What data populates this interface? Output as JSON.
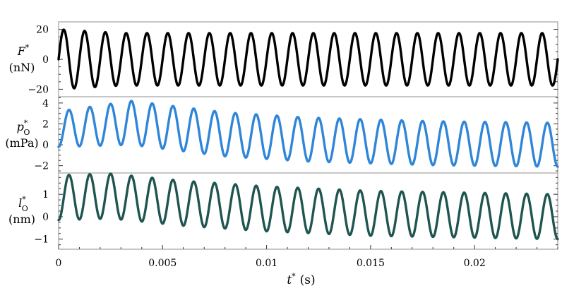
{
  "chart_data": [
    {
      "type": "line",
      "panel": "top",
      "ylabel_symbol": "F",
      "ylabel_sup": "*",
      "ylabel_unit": "(nN)",
      "xlim": [
        0,
        0.024
      ],
      "ylim": [
        -25,
        25
      ],
      "yticks": [
        20,
        0,
        -20
      ],
      "ytick_labels": [
        "20",
        "0",
        "−20"
      ],
      "color": "#000000",
      "signal": {
        "frequency_hz": 1000,
        "amplitude_points": [
          [
            0,
            20
          ],
          [
            0.003,
            17.5
          ],
          [
            0.024,
            17.5
          ]
        ],
        "offset": 0,
        "phase": 0
      }
    },
    {
      "type": "line",
      "panel": "middle",
      "ylabel_symbol": "p",
      "ylabel_sub": "O",
      "ylabel_sup": "*",
      "ylabel_unit": "(mPa)",
      "xlim": [
        0,
        0.024
      ],
      "ylim": [
        -2.7,
        4.6
      ],
      "yticks": [
        4,
        2,
        0,
        -2
      ],
      "ytick_labels": [
        "4",
        "2",
        "0",
        "−2"
      ],
      "color": "#2f86d8",
      "signal": {
        "frequency_hz": 1000,
        "amplitude_points": [
          [
            0,
            1.7
          ],
          [
            0.0035,
            2.1
          ],
          [
            0.024,
            2.1
          ]
        ],
        "offset_points": [
          [
            0,
            1.5
          ],
          [
            0.0035,
            2.1
          ],
          [
            0.008,
            1.0
          ],
          [
            0.012,
            0.5
          ],
          [
            0.018,
            0.15
          ],
          [
            0.024,
            0.0
          ]
        ],
        "phase": -1.5708
      }
    },
    {
      "type": "line",
      "panel": "bottom",
      "ylabel_symbol": "l",
      "ylabel_sub": "O",
      "ylabel_sup": "*",
      "ylabel_unit": "(nm)",
      "xlim": [
        0,
        0.024
      ],
      "ylim": [
        -1.45,
        1.95
      ],
      "yticks": [
        1,
        0,
        -1
      ],
      "ytick_labels": [
        "1",
        "0",
        "−1"
      ],
      "color": "#1f5550",
      "signal": {
        "frequency_hz": 1000,
        "amplitude_points": [
          [
            0,
            1.0
          ],
          [
            0.024,
            1.0
          ]
        ],
        "offset_points": [
          [
            0,
            0.85
          ],
          [
            0.0025,
            0.92
          ],
          [
            0.006,
            0.6
          ],
          [
            0.01,
            0.35
          ],
          [
            0.015,
            0.15
          ],
          [
            0.024,
            0.0
          ]
        ],
        "phase": -1.5708
      }
    }
  ],
  "xaxis": {
    "xticks": [
      0,
      0.005,
      0.01,
      0.015,
      0.02
    ],
    "xtick_labels": [
      "0",
      "0.005",
      "0.01",
      "0.015",
      "0.02"
    ],
    "xlabel_symbol": "t",
    "xlabel_sup": "*",
    "xlabel_unit": "(s)"
  }
}
